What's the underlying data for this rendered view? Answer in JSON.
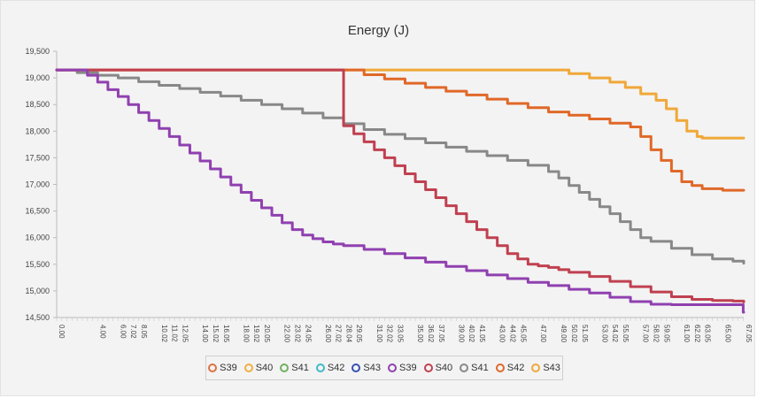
{
  "chart_data": {
    "type": "line",
    "title": "Energy (J)",
    "xlabel": "",
    "ylabel": "",
    "ylim": [
      14500,
      19500
    ],
    "xlim": [
      0,
      67.05
    ],
    "y_ticks": [
      "19,500",
      "19,000",
      "18,500",
      "18,000",
      "17,500",
      "17,000",
      "16,500",
      "16,000",
      "15,500",
      "15,000",
      "14,500"
    ],
    "x_ticks": [
      "0.00",
      "4.00",
      "6.00",
      "7.02",
      "8.05",
      "10.02",
      "11.02",
      "12.05",
      "14.00",
      "15.02",
      "16.05",
      "18.00",
      "19.02",
      "20.05",
      "22.00",
      "23.02",
      "24.05",
      "26.00",
      "27.02",
      "28.04",
      "29.05",
      "31.00",
      "32.02",
      "33.05",
      "35.00",
      "36.02",
      "37.05",
      "39.00",
      "40.02",
      "41.05",
      "43.00",
      "44.02",
      "45.05",
      "47.00",
      "49.00",
      "50.02",
      "51.05",
      "53.00",
      "54.02",
      "55.05",
      "57.00",
      "58.02",
      "59.05",
      "61.00",
      "62.02",
      "63.05",
      "65.00",
      "67.05"
    ],
    "x_tick_positions": [
      0,
      4,
      6,
      7.02,
      8.05,
      10.02,
      11.02,
      12.05,
      14,
      15.02,
      16.05,
      18,
      19.02,
      20.05,
      22,
      23.02,
      24.05,
      26,
      27.02,
      28.04,
      29.05,
      31,
      32.02,
      33.05,
      35,
      36.02,
      37.05,
      39,
      40.02,
      41.05,
      43,
      44.02,
      45.05,
      47,
      49,
      50.02,
      51.05,
      53,
      54.02,
      55.05,
      57,
      58.02,
      59.05,
      61,
      62.02,
      63.05,
      65,
      67.05
    ],
    "grid": false,
    "legend_position": "bottom",
    "legend": [
      {
        "name": "S39",
        "color": "#e07040"
      },
      {
        "name": "S40",
        "color": "#f0b040"
      },
      {
        "name": "S41",
        "color": "#70b060"
      },
      {
        "name": "S42",
        "color": "#40b8c8"
      },
      {
        "name": "S43",
        "color": "#3850b0"
      },
      {
        "name": "S39",
        "color": "#9040b0"
      },
      {
        "name": "S40",
        "color": "#c04050"
      },
      {
        "name": "S41",
        "color": "#888888"
      },
      {
        "name": "S42",
        "color": "#e06828"
      },
      {
        "name": "S43",
        "color": "#f0a838"
      }
    ],
    "series": [
      {
        "name": "S43",
        "color": "#f0a838",
        "x": [
          0,
          48.5,
          50,
          52,
          54,
          55.5,
          57,
          58.5,
          59.5,
          60.5,
          61.5,
          62.5,
          63,
          65,
          67.05
        ],
        "y": [
          19150,
          19150,
          19080,
          19000,
          18920,
          18820,
          18700,
          18580,
          18420,
          18200,
          18000,
          17900,
          17870,
          17870,
          17870
        ]
      },
      {
        "name": "S42",
        "color": "#e06828",
        "x": [
          0,
          28,
          30,
          32,
          34,
          36,
          38,
          40,
          42,
          44,
          46,
          48,
          50,
          52,
          54,
          56,
          57,
          58,
          59,
          60,
          61,
          62,
          63,
          65,
          67.05
        ],
        "y": [
          19150,
          19150,
          19060,
          18980,
          18900,
          18820,
          18750,
          18680,
          18600,
          18520,
          18440,
          18360,
          18300,
          18230,
          18150,
          18080,
          17900,
          17650,
          17450,
          17250,
          17050,
          16980,
          16920,
          16890,
          16890
        ]
      },
      {
        "name": "S41",
        "color": "#888888",
        "x": [
          0,
          2,
          4,
          6,
          8,
          10,
          12,
          14,
          16,
          18,
          20,
          22,
          24,
          26,
          28,
          30,
          32,
          34,
          36,
          38,
          40,
          42,
          44,
          46,
          48,
          49,
          50,
          51,
          52,
          53,
          54,
          55,
          56,
          57,
          58,
          60,
          62,
          64,
          66,
          67.05
        ],
        "y": [
          19150,
          19100,
          19050,
          19000,
          18930,
          18860,
          18800,
          18730,
          18660,
          18580,
          18500,
          18420,
          18340,
          18250,
          18140,
          18030,
          17940,
          17860,
          17780,
          17700,
          17620,
          17540,
          17450,
          17360,
          17240,
          17120,
          16980,
          16850,
          16720,
          16580,
          16450,
          16300,
          16150,
          16000,
          15930,
          15800,
          15680,
          15600,
          15560,
          15520
        ]
      },
      {
        "name": "S40",
        "color": "#c04050",
        "x": [
          0,
          28,
          29,
          30,
          31,
          32,
          33,
          34,
          35,
          36,
          37,
          38,
          39,
          40,
          41,
          42,
          43,
          44,
          45,
          46,
          47,
          48,
          49,
          50,
          52,
          54,
          56,
          58,
          60,
          62,
          64,
          66,
          67.05
        ],
        "y": [
          19150,
          18100,
          17950,
          17800,
          17650,
          17500,
          17350,
          17200,
          17050,
          16900,
          16750,
          16600,
          16450,
          16300,
          16150,
          16000,
          15850,
          15700,
          15600,
          15500,
          15470,
          15440,
          15400,
          15350,
          15270,
          15180,
          15080,
          14980,
          14890,
          14840,
          14820,
          14810,
          14790
        ]
      },
      {
        "name": "S39",
        "color": "#9040b0",
        "x": [
          0,
          2,
          3,
          4,
          5,
          6,
          7,
          8,
          9,
          10,
          11,
          12,
          13,
          14,
          15,
          16,
          17,
          18,
          19,
          20,
          21,
          22,
          23,
          24,
          25,
          26,
          27,
          28,
          30,
          32,
          34,
          36,
          38,
          40,
          42,
          44,
          46,
          48,
          50,
          52,
          54,
          56,
          58,
          60,
          62,
          64,
          66,
          67,
          67.05
        ],
        "y": [
          19150,
          19150,
          19050,
          18920,
          18780,
          18650,
          18500,
          18350,
          18200,
          18050,
          17900,
          17740,
          17590,
          17440,
          17290,
          17140,
          16990,
          16850,
          16700,
          16560,
          16420,
          16280,
          16150,
          16050,
          15980,
          15920,
          15880,
          15850,
          15780,
          15700,
          15620,
          15540,
          15460,
          15380,
          15300,
          15230,
          15160,
          15100,
          15030,
          14960,
          14880,
          14800,
          14750,
          14740,
          14740,
          14740,
          14740,
          14600,
          14600
        ]
      }
    ]
  }
}
